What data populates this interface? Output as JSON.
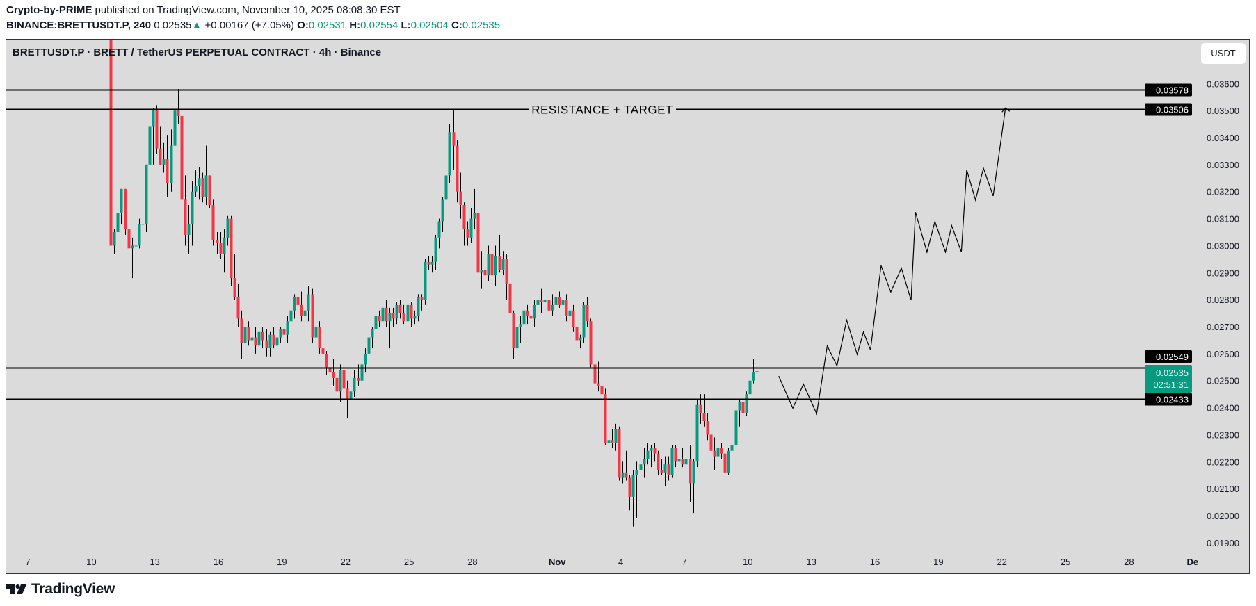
{
  "header": {
    "author": "Crypto-by-PRIME",
    "published": "published on TradingView.com, November 10, 2025 08:08:30 EST",
    "symbol": "BINANCE:BRETTUSDT.P, 240",
    "last": "0.02535",
    "change": "+0.00167 (+7.05%)",
    "o_label": "O:",
    "o": "0.02531",
    "h_label": "H:",
    "h": "0.02554",
    "l_label": "L:",
    "l": "0.02504",
    "c_label": "C:",
    "c": "0.02535",
    "up_icon": "triangle-up"
  },
  "chart_title": "BRETTUSDT.P · BRETT / TetherUS PERPETUAL CONTRACT · 4h · Binance",
  "currency_button": "USDT",
  "footer": {
    "brand": "TradingView"
  },
  "colors": {
    "up": "#089981",
    "down": "#f23645",
    "background": "#dbdbdb",
    "lines": "#000000"
  },
  "chart_data": {
    "type": "candlestick",
    "interval": "4h",
    "first_candle_time": "2025-10-10T20:00",
    "ylim": [
      0.0187,
      0.0377
    ],
    "xlim": [
      "2025-10-07",
      "2025-12-01"
    ],
    "grid": false,
    "y_ticks": [
      "0.01900",
      "0.02000",
      "0.02100",
      "0.02200",
      "0.02300",
      "0.02400",
      "0.02500",
      "0.02600",
      "0.02700",
      "0.02800",
      "0.02900",
      "0.03000",
      "0.03100",
      "0.03200",
      "0.03300",
      "0.03400",
      "0.03500",
      "0.03600"
    ],
    "x_ticks": [
      {
        "date": "2025-10-07",
        "label": "7"
      },
      {
        "date": "2025-10-10",
        "label": "10"
      },
      {
        "date": "2025-10-13",
        "label": "13"
      },
      {
        "date": "2025-10-16",
        "label": "16"
      },
      {
        "date": "2025-10-19",
        "label": "19"
      },
      {
        "date": "2025-10-22",
        "label": "22"
      },
      {
        "date": "2025-10-25",
        "label": "25"
      },
      {
        "date": "2025-10-28",
        "label": "28"
      },
      {
        "date": "2025-11-01",
        "label": "Nov",
        "bold": true
      },
      {
        "date": "2025-11-04",
        "label": "4"
      },
      {
        "date": "2025-11-07",
        "label": "7"
      },
      {
        "date": "2025-11-10",
        "label": "10"
      },
      {
        "date": "2025-11-13",
        "label": "13"
      },
      {
        "date": "2025-11-16",
        "label": "16"
      },
      {
        "date": "2025-11-19",
        "label": "19"
      },
      {
        "date": "2025-11-22",
        "label": "22"
      },
      {
        "date": "2025-11-25",
        "label": "25"
      },
      {
        "date": "2025-11-28",
        "label": "28"
      },
      {
        "date": "2025-12-01",
        "label": "De",
        "bold": true
      }
    ],
    "candles": [
      [
        0.038,
        0.0385,
        0.01873,
        0.03
      ],
      [
        0.03,
        0.0306,
        0.0297,
        0.0305
      ],
      [
        0.0305,
        0.0314,
        0.03,
        0.0312
      ],
      [
        0.0312,
        0.0321,
        0.0308,
        0.0321
      ],
      [
        0.0321,
        0.0321,
        0.0304,
        0.0306
      ],
      [
        0.0306,
        0.0312,
        0.0292,
        0.0299
      ],
      [
        0.0299,
        0.0303,
        0.0288,
        0.03
      ],
      [
        0.03,
        0.0308,
        0.0298,
        0.03
      ],
      [
        0.03,
        0.031,
        0.0299,
        0.0308
      ],
      [
        0.0308,
        0.031,
        0.03,
        0.0308
      ],
      [
        0.0308,
        0.033,
        0.0305,
        0.033
      ],
      [
        0.033,
        0.0344,
        0.0328,
        0.0344
      ],
      [
        0.0344,
        0.0351,
        0.033,
        0.035
      ],
      [
        0.035,
        0.0352,
        0.0334,
        0.0336
      ],
      [
        0.0336,
        0.0344,
        0.033,
        0.033
      ],
      [
        0.033,
        0.0338,
        0.0327,
        0.0332
      ],
      [
        0.0332,
        0.0341,
        0.0318,
        0.0323
      ],
      [
        0.0323,
        0.0343,
        0.032,
        0.0337
      ],
      [
        0.0337,
        0.0352,
        0.0331,
        0.035
      ],
      [
        0.035,
        0.0358,
        0.0345,
        0.0348
      ],
      [
        0.0348,
        0.035,
        0.0313,
        0.0317
      ],
      [
        0.0317,
        0.0326,
        0.03,
        0.0304
      ],
      [
        0.0304,
        0.0315,
        0.0297,
        0.0308
      ],
      [
        0.0308,
        0.0324,
        0.03,
        0.032
      ],
      [
        0.032,
        0.0328,
        0.0318,
        0.0322
      ],
      [
        0.0322,
        0.0329,
        0.0317,
        0.0325
      ],
      [
        0.0325,
        0.0327,
        0.0316,
        0.0318
      ],
      [
        0.0318,
        0.0337,
        0.0315,
        0.0326
      ],
      [
        0.0326,
        0.0326,
        0.0314,
        0.0315
      ],
      [
        0.0315,
        0.0317,
        0.03,
        0.0302
      ],
      [
        0.0302,
        0.0305,
        0.0297,
        0.0301
      ],
      [
        0.0301,
        0.0305,
        0.0295,
        0.0297
      ],
      [
        0.0297,
        0.0306,
        0.029,
        0.0303
      ],
      [
        0.0303,
        0.0311,
        0.03,
        0.031
      ],
      [
        0.031,
        0.0311,
        0.0285,
        0.0288
      ],
      [
        0.0288,
        0.0297,
        0.028,
        0.0281
      ],
      [
        0.0281,
        0.0286,
        0.027,
        0.0273
      ],
      [
        0.0273,
        0.0276,
        0.0258,
        0.0264
      ],
      [
        0.0264,
        0.0272,
        0.026,
        0.027
      ],
      [
        0.027,
        0.0272,
        0.0263,
        0.0265
      ],
      [
        0.0265,
        0.0269,
        0.0262,
        0.0266
      ],
      [
        0.0266,
        0.027,
        0.026,
        0.0263
      ],
      [
        0.0263,
        0.0271,
        0.0261,
        0.0268
      ],
      [
        0.0268,
        0.027,
        0.0262,
        0.0265
      ],
      [
        0.0265,
        0.0269,
        0.0259,
        0.0262
      ],
      [
        0.0262,
        0.0268,
        0.0259,
        0.0267
      ],
      [
        0.0267,
        0.027,
        0.0262,
        0.0263
      ],
      [
        0.0263,
        0.0268,
        0.0258,
        0.0266
      ],
      [
        0.0266,
        0.027,
        0.0264,
        0.0269
      ],
      [
        0.0269,
        0.0275,
        0.0265,
        0.0267
      ],
      [
        0.0267,
        0.0274,
        0.0264,
        0.0272
      ],
      [
        0.0272,
        0.0279,
        0.0268,
        0.0276
      ],
      [
        0.0276,
        0.0282,
        0.0273,
        0.0281
      ],
      [
        0.0281,
        0.0286,
        0.0276,
        0.0278
      ],
      [
        0.0278,
        0.0283,
        0.0272,
        0.0274
      ],
      [
        0.0274,
        0.0278,
        0.027,
        0.0276
      ],
      [
        0.0276,
        0.0285,
        0.0272,
        0.0282
      ],
      [
        0.0282,
        0.0284,
        0.0264,
        0.0266
      ],
      [
        0.0266,
        0.0275,
        0.0262,
        0.027
      ],
      [
        0.027,
        0.0272,
        0.026,
        0.0262
      ],
      [
        0.0262,
        0.0268,
        0.0258,
        0.026
      ],
      [
        0.026,
        0.0261,
        0.0252,
        0.0255
      ],
      [
        0.0255,
        0.0258,
        0.0251,
        0.0253
      ],
      [
        0.0253,
        0.0258,
        0.0248,
        0.0251
      ],
      [
        0.0251,
        0.0255,
        0.0244,
        0.0246
      ],
      [
        0.0246,
        0.0256,
        0.0242,
        0.0254
      ],
      [
        0.0254,
        0.0256,
        0.0244,
        0.0247
      ],
      [
        0.0247,
        0.025,
        0.0236,
        0.0243
      ],
      [
        0.0243,
        0.0248,
        0.0241,
        0.0246
      ],
      [
        0.0246,
        0.0254,
        0.0244,
        0.0251
      ],
      [
        0.0251,
        0.0256,
        0.0248,
        0.025
      ],
      [
        0.025,
        0.0258,
        0.0248,
        0.0256
      ],
      [
        0.0256,
        0.0262,
        0.0253,
        0.026
      ],
      [
        0.026,
        0.0268,
        0.0258,
        0.0266
      ],
      [
        0.0266,
        0.027,
        0.0262,
        0.0269
      ],
      [
        0.0269,
        0.0279,
        0.0266,
        0.0274
      ],
      [
        0.0274,
        0.0276,
        0.027,
        0.0272
      ],
      [
        0.0272,
        0.0278,
        0.027,
        0.0277
      ],
      [
        0.0277,
        0.028,
        0.027,
        0.0272
      ],
      [
        0.0272,
        0.0277,
        0.0262,
        0.0275
      ],
      [
        0.0275,
        0.0277,
        0.027,
        0.0273
      ],
      [
        0.0273,
        0.0279,
        0.0271,
        0.0278
      ],
      [
        0.0278,
        0.028,
        0.0273,
        0.0275
      ],
      [
        0.0275,
        0.0278,
        0.0271,
        0.0272
      ],
      [
        0.0272,
        0.0279,
        0.0271,
        0.0278
      ],
      [
        0.0278,
        0.0279,
        0.027,
        0.0273
      ],
      [
        0.0273,
        0.0276,
        0.0271,
        0.0274
      ],
      [
        0.0274,
        0.0282,
        0.0272,
        0.0281
      ],
      [
        0.0281,
        0.0282,
        0.0276,
        0.028
      ],
      [
        0.028,
        0.0295,
        0.0278,
        0.0294
      ],
      [
        0.0294,
        0.0296,
        0.0291,
        0.0293
      ],
      [
        0.0293,
        0.0296,
        0.029,
        0.0294
      ],
      [
        0.0294,
        0.0304,
        0.0291,
        0.0303
      ],
      [
        0.0303,
        0.031,
        0.0299,
        0.0309
      ],
      [
        0.0309,
        0.0318,
        0.0305,
        0.0317
      ],
      [
        0.0317,
        0.0328,
        0.0315,
        0.0326
      ],
      [
        0.0326,
        0.0345,
        0.0323,
        0.0342
      ],
      [
        0.0342,
        0.035,
        0.0328,
        0.0337
      ],
      [
        0.0337,
        0.0339,
        0.0316,
        0.032
      ],
      [
        0.032,
        0.0327,
        0.031,
        0.0315
      ],
      [
        0.0315,
        0.0316,
        0.03,
        0.0306
      ],
      [
        0.0306,
        0.0309,
        0.03,
        0.0303
      ],
      [
        0.0303,
        0.0314,
        0.0301,
        0.031
      ],
      [
        0.031,
        0.0321,
        0.0306,
        0.0312
      ],
      [
        0.0312,
        0.0318,
        0.0285,
        0.029
      ],
      [
        0.029,
        0.0298,
        0.0284,
        0.0291
      ],
      [
        0.0291,
        0.0294,
        0.0287,
        0.0289
      ],
      [
        0.0289,
        0.03,
        0.0287,
        0.0297
      ],
      [
        0.0297,
        0.0299,
        0.0288,
        0.0289
      ],
      [
        0.0289,
        0.03,
        0.0285,
        0.0296
      ],
      [
        0.0296,
        0.0304,
        0.029,
        0.0291
      ],
      [
        0.0291,
        0.0298,
        0.0289,
        0.0295
      ],
      [
        0.0295,
        0.0297,
        0.028,
        0.0286
      ],
      [
        0.0286,
        0.0287,
        0.0272,
        0.0275
      ],
      [
        0.0275,
        0.0276,
        0.0258,
        0.0262
      ],
      [
        0.0262,
        0.0272,
        0.0252,
        0.027
      ],
      [
        0.027,
        0.0274,
        0.0264,
        0.0271
      ],
      [
        0.0271,
        0.0277,
        0.0268,
        0.0276
      ],
      [
        0.0276,
        0.0278,
        0.0271,
        0.0274
      ],
      [
        0.0274,
        0.0278,
        0.0262,
        0.0273
      ],
      [
        0.0273,
        0.028,
        0.027,
        0.0278
      ],
      [
        0.0278,
        0.0282,
        0.0275,
        0.028
      ],
      [
        0.028,
        0.0284,
        0.0275,
        0.0279
      ],
      [
        0.0279,
        0.029,
        0.0276,
        0.028
      ],
      [
        0.028,
        0.0281,
        0.0275,
        0.0276
      ],
      [
        0.0276,
        0.0282,
        0.0274,
        0.0278
      ],
      [
        0.0278,
        0.0283,
        0.0276,
        0.0281
      ],
      [
        0.0281,
        0.0283,
        0.0277,
        0.0278
      ],
      [
        0.0278,
        0.0282,
        0.0276,
        0.028
      ],
      [
        0.028,
        0.0282,
        0.0272,
        0.0274
      ],
      [
        0.0274,
        0.0277,
        0.027,
        0.0276
      ],
      [
        0.0276,
        0.0278,
        0.0268,
        0.027
      ],
      [
        0.027,
        0.0271,
        0.0262,
        0.0265
      ],
      [
        0.0265,
        0.0267,
        0.0262,
        0.0266
      ],
      [
        0.0266,
        0.0279,
        0.0264,
        0.0278
      ],
      [
        0.0278,
        0.0281,
        0.027,
        0.0272
      ],
      [
        0.0272,
        0.0273,
        0.0255,
        0.0256
      ],
      [
        0.0256,
        0.0259,
        0.0247,
        0.0249
      ],
      [
        0.0249,
        0.0257,
        0.0246,
        0.0248
      ],
      [
        0.0248,
        0.0257,
        0.0243,
        0.0245
      ],
      [
        0.0245,
        0.0247,
        0.0226,
        0.0227
      ],
      [
        0.0227,
        0.0236,
        0.0222,
        0.0228
      ],
      [
        0.0228,
        0.0232,
        0.0225,
        0.0227
      ],
      [
        0.0227,
        0.0234,
        0.0224,
        0.0232
      ],
      [
        0.0232,
        0.0233,
        0.0213,
        0.0214
      ],
      [
        0.0214,
        0.022,
        0.0212,
        0.0216
      ],
      [
        0.0216,
        0.0224,
        0.0213,
        0.0214
      ],
      [
        0.0214,
        0.0215,
        0.0202,
        0.0207
      ],
      [
        0.0207,
        0.0217,
        0.0196,
        0.0215
      ],
      [
        0.0215,
        0.022,
        0.0199,
        0.0217
      ],
      [
        0.0217,
        0.0223,
        0.0215,
        0.0219
      ],
      [
        0.0219,
        0.0225,
        0.0214,
        0.0221
      ],
      [
        0.0221,
        0.0227,
        0.0219,
        0.0224
      ],
      [
        0.0224,
        0.0226,
        0.0218,
        0.0225
      ],
      [
        0.0225,
        0.0227,
        0.022,
        0.0223
      ],
      [
        0.0223,
        0.0224,
        0.0215,
        0.0217
      ],
      [
        0.0217,
        0.0221,
        0.0215,
        0.0216
      ],
      [
        0.0216,
        0.0222,
        0.0211,
        0.0219
      ],
      [
        0.0219,
        0.0222,
        0.0213,
        0.0215
      ],
      [
        0.0215,
        0.0226,
        0.0214,
        0.0225
      ],
      [
        0.0225,
        0.0226,
        0.0218,
        0.022
      ],
      [
        0.022,
        0.0223,
        0.0216,
        0.0221
      ],
      [
        0.0221,
        0.0225,
        0.0218,
        0.0219
      ],
      [
        0.0219,
        0.0222,
        0.0215,
        0.0221
      ],
      [
        0.0221,
        0.0226,
        0.0205,
        0.0212
      ],
      [
        0.0212,
        0.0221,
        0.0201,
        0.022
      ],
      [
        0.022,
        0.0243,
        0.0218,
        0.0241
      ],
      [
        0.0241,
        0.0245,
        0.0234,
        0.0238
      ],
      [
        0.0238,
        0.0245,
        0.0233,
        0.0235
      ],
      [
        0.0235,
        0.0238,
        0.0228,
        0.023
      ],
      [
        0.023,
        0.0236,
        0.0222,
        0.0224
      ],
      [
        0.0224,
        0.0229,
        0.0217,
        0.0222
      ],
      [
        0.0222,
        0.0226,
        0.0218,
        0.0225
      ],
      [
        0.0225,
        0.0227,
        0.0221,
        0.0223
      ],
      [
        0.0223,
        0.0224,
        0.0214,
        0.0216
      ],
      [
        0.0216,
        0.0225,
        0.0215,
        0.0224
      ],
      [
        0.0224,
        0.023,
        0.0221,
        0.0226
      ],
      [
        0.0226,
        0.024,
        0.0225,
        0.0239
      ],
      [
        0.0239,
        0.0243,
        0.0233,
        0.0242
      ],
      [
        0.0242,
        0.0243,
        0.0236,
        0.0238
      ],
      [
        0.0238,
        0.0246,
        0.0237,
        0.0245
      ],
      [
        0.0245,
        0.0251,
        0.0241,
        0.025
      ],
      [
        0.025,
        0.0258,
        0.0249,
        0.02531
      ],
      [
        0.02531,
        0.02554,
        0.02504,
        0.02535
      ]
    ],
    "horizontal_lines": [
      {
        "price": 0.03578,
        "label": "0.03578"
      },
      {
        "price": 0.03506,
        "label": "0.03506",
        "annotation": "RESISTANCE + TARGET"
      },
      {
        "price": 0.02549,
        "label": "0.02549"
      },
      {
        "price": 0.02433,
        "label": "0.02433"
      }
    ],
    "current_price": {
      "label": "0.02535",
      "countdown": "02:51:31",
      "price": 0.02535
    },
    "projection_path": [
      [
        "2025-11-11T11:00",
        0.02517
      ],
      [
        "2025-11-12T03:00",
        0.02398
      ],
      [
        "2025-11-12T15:00",
        0.02487
      ],
      [
        "2025-11-13T06:00",
        0.02377
      ],
      [
        "2025-11-13T18:00",
        0.02629
      ],
      [
        "2025-11-14T05:00",
        0.02555
      ],
      [
        "2025-11-14T16:00",
        0.02724
      ],
      [
        "2025-11-15T04:00",
        0.02597
      ],
      [
        "2025-11-15T11:00",
        0.0268
      ],
      [
        "2025-11-15T19:00",
        0.02614
      ],
      [
        "2025-11-16T07:00",
        0.02926
      ],
      [
        "2025-11-16T18:00",
        0.02828
      ],
      [
        "2025-11-17T06:00",
        0.02917
      ],
      [
        "2025-11-17T17:00",
        0.02798
      ],
      [
        "2025-11-17T22:00",
        0.03124
      ],
      [
        "2025-11-18T11:00",
        0.02976
      ],
      [
        "2025-11-18T20:00",
        0.03089
      ],
      [
        "2025-11-19T08:00",
        0.02976
      ],
      [
        "2025-11-19T15:00",
        0.03074
      ],
      [
        "2025-11-20T02:00",
        0.02976
      ],
      [
        "2025-11-20T08:00",
        0.03281
      ],
      [
        "2025-11-20T18:00",
        0.03169
      ],
      [
        "2025-11-21T03:00",
        0.03287
      ],
      [
        "2025-11-21T14:00",
        0.03184
      ],
      [
        "2025-11-22T04:00",
        0.0351
      ]
    ]
  }
}
